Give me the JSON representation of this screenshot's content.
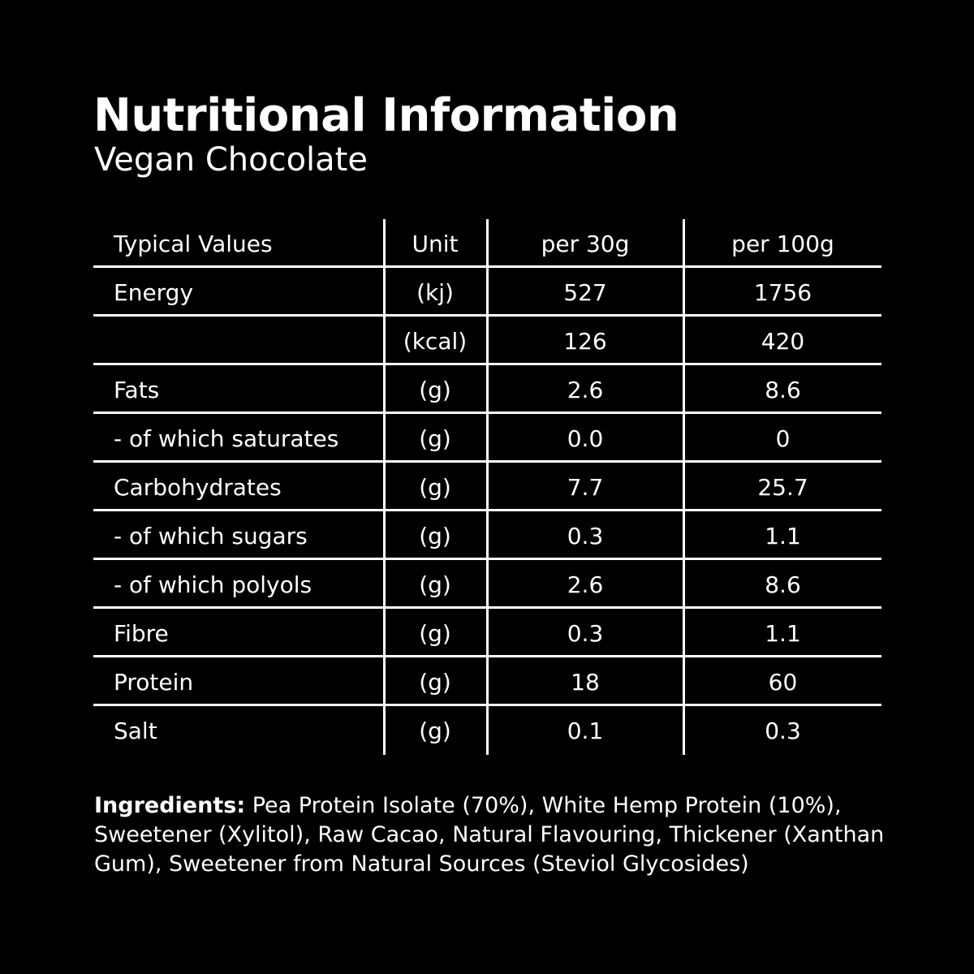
{
  "title": "Nutritional Information",
  "subtitle": "Vegan Chocolate",
  "table": {
    "headers": [
      "Typical Values",
      "Unit",
      "per 30g",
      "per 100g"
    ],
    "rows": [
      [
        "Energy",
        "(kj)",
        "527",
        "1756"
      ],
      [
        "",
        "(kcal)",
        "126",
        "420"
      ],
      [
        "Fats",
        "(g)",
        "2.6",
        "8.6"
      ],
      [
        "- of which saturates",
        "(g)",
        "0.0",
        "0"
      ],
      [
        "Carbohydrates",
        "(g)",
        "7.7",
        "25.7"
      ],
      [
        "- of which sugars",
        "(g)",
        "0.3",
        "1.1"
      ],
      [
        "- of which polyols",
        "(g)",
        "2.6",
        "8.6"
      ],
      [
        "Fibre",
        "(g)",
        "0.3",
        "1.1"
      ],
      [
        "Protein",
        "(g)",
        "18",
        "60"
      ],
      [
        "Salt",
        "(g)",
        "0.1",
        "0.3"
      ]
    ]
  },
  "ingredients": {
    "label": "Ingredients:",
    "text": " Pea Protein Isolate (70%), White Hemp Protein (10%), Sweetener (Xylitol), Raw Cacao, Natural Flavouring, Thickener (Xanthan Gum), Sweetener from Natural Sources (Steviol Glycosides)"
  },
  "colors": {
    "background": "#000000",
    "text": "#ffffff"
  }
}
